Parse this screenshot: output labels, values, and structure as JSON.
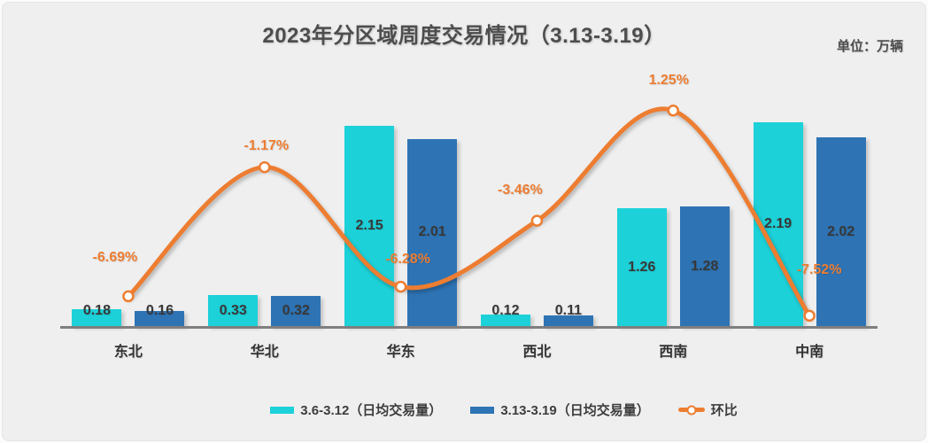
{
  "chart_data": {
    "type": "bar",
    "subtype": "grouped-bars-with-line-overlay",
    "title": "2023年分区域周度交易情况（3.13-3.19）",
    "unit": "单位：万辆",
    "categories": [
      "东北",
      "华北",
      "华东",
      "西北",
      "西南",
      "中南"
    ],
    "series": [
      {
        "name": "3.6-3.12（日均交易量）",
        "type": "bar",
        "color": "#1dd1d9",
        "values": [
          0.18,
          0.33,
          2.15,
          0.12,
          1.26,
          2.19
        ]
      },
      {
        "name": "3.13-3.19（日均交易量）",
        "type": "bar",
        "color": "#2e74b5",
        "values": [
          0.16,
          0.32,
          2.01,
          0.11,
          1.28,
          2.02
        ]
      },
      {
        "name": "环比",
        "type": "line",
        "color": "#ed7d31",
        "values": [
          -6.69,
          -1.17,
          -6.28,
          -3.46,
          1.25,
          -7.52
        ],
        "point_labels": [
          "-6.69%",
          "-1.17%",
          "-6.28%",
          "-3.46%",
          "1.25%",
          "-7.52%"
        ]
      }
    ],
    "xlabel": "",
    "ylabel": "",
    "bar_axis": {
      "min": 0,
      "max": 2.5
    },
    "line_axis": {
      "min": -8,
      "max": 2
    },
    "grid": false,
    "legend_position": "bottom",
    "colors": {
      "background": "#efefef",
      "axis": "#7f7f7f",
      "title_text": "#4d4d4d",
      "value_label_text": "#383838",
      "pct_label_text": "#ed7d31",
      "marker_fill": "#ffffff"
    }
  }
}
